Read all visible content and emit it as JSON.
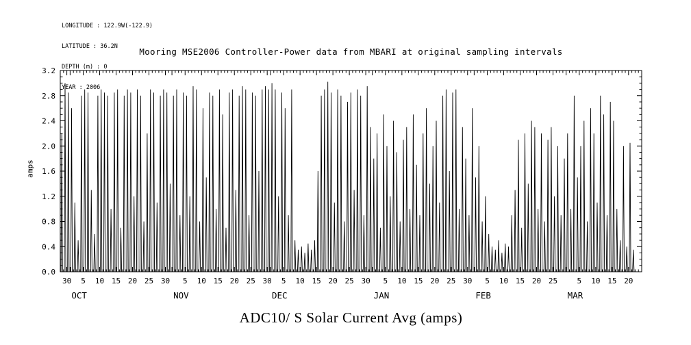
{
  "metadata": {
    "lines": [
      "LONGITUDE : 122.9W(-122.9)",
      "LATITUDE : 36.2N",
      "DEPTH (m) : 0",
      "YEAR : 2006"
    ]
  },
  "colors": {
    "axis": "#000000",
    "series": "#000000",
    "background": "#ffffff"
  },
  "chart_data": {
    "type": "line",
    "title": "Mooring MSE2006 Controller-Power data from MBARI at original sampling intervals",
    "variable_label": "ADC10/ S Solar Current Avg (amps)",
    "ylabel": "amps",
    "ylim": [
      0.0,
      3.2
    ],
    "ytick_step": 0.4,
    "ytick_labels": [
      "0.0",
      "0.4",
      "0.8",
      "1.2",
      "1.6",
      "2.0",
      "2.4",
      "2.8",
      "3.2"
    ],
    "grid": false,
    "legend": false,
    "x_axis": {
      "total_days": 177,
      "tick_labels": [
        {
          "day": 2,
          "label": "30"
        },
        {
          "day": 7,
          "label": "5"
        },
        {
          "day": 12,
          "label": "10"
        },
        {
          "day": 17,
          "label": "15"
        },
        {
          "day": 22,
          "label": "20"
        },
        {
          "day": 27,
          "label": "25"
        },
        {
          "day": 32,
          "label": "30"
        },
        {
          "day": 38,
          "label": "5"
        },
        {
          "day": 43,
          "label": "10"
        },
        {
          "day": 48,
          "label": "15"
        },
        {
          "day": 53,
          "label": "20"
        },
        {
          "day": 58,
          "label": "25"
        },
        {
          "day": 63,
          "label": "30"
        },
        {
          "day": 68,
          "label": "5"
        },
        {
          "day": 73,
          "label": "10"
        },
        {
          "day": 78,
          "label": "15"
        },
        {
          "day": 83,
          "label": "20"
        },
        {
          "day": 88,
          "label": "25"
        },
        {
          "day": 93,
          "label": "30"
        },
        {
          "day": 99,
          "label": "5"
        },
        {
          "day": 104,
          "label": "10"
        },
        {
          "day": 109,
          "label": "15"
        },
        {
          "day": 114,
          "label": "20"
        },
        {
          "day": 119,
          "label": "25"
        },
        {
          "day": 124,
          "label": "30"
        },
        {
          "day": 130,
          "label": "5"
        },
        {
          "day": 135,
          "label": "10"
        },
        {
          "day": 140,
          "label": "15"
        },
        {
          "day": 145,
          "label": "20"
        },
        {
          "day": 150,
          "label": "25"
        },
        {
          "day": 158,
          "label": "5"
        },
        {
          "day": 163,
          "label": "10"
        },
        {
          "day": 168,
          "label": "15"
        },
        {
          "day": 173,
          "label": "20"
        }
      ],
      "month_labels": [
        {
          "day": 3,
          "label": "OCT"
        },
        {
          "day": 34,
          "label": "NOV"
        },
        {
          "day": 64,
          "label": "DEC"
        },
        {
          "day": 95,
          "label": "JAN"
        },
        {
          "day": 126,
          "label": "FEB"
        },
        {
          "day": 154,
          "label": "MAR"
        }
      ]
    },
    "series": [
      {
        "name": "ADC10/ S Solar Current Avg (amps)",
        "daily_peak_amps": [
          2.2,
          3.0,
          2.85,
          2.6,
          1.1,
          0.5,
          2.8,
          2.9,
          2.85,
          1.3,
          0.6,
          2.8,
          2.9,
          2.85,
          2.8,
          1.0,
          2.85,
          2.9,
          0.7,
          2.8,
          2.9,
          2.85,
          1.2,
          2.9,
          2.8,
          0.8,
          2.2,
          2.9,
          2.85,
          1.1,
          2.8,
          2.9,
          2.85,
          1.4,
          2.8,
          2.9,
          0.9,
          2.85,
          2.8,
          1.2,
          2.95,
          2.9,
          0.8,
          2.6,
          1.5,
          2.85,
          2.8,
          1.0,
          2.9,
          2.5,
          0.7,
          2.85,
          2.9,
          1.3,
          2.8,
          2.95,
          2.9,
          0.9,
          2.85,
          2.8,
          1.6,
          2.9,
          2.95,
          2.9,
          3.0,
          2.9,
          1.2,
          2.85,
          2.6,
          0.9,
          2.9,
          0.5,
          0.35,
          0.4,
          0.3,
          0.45,
          0.35,
          0.5,
          1.6,
          2.8,
          2.9,
          3.02,
          2.85,
          1.1,
          2.9,
          2.8,
          0.8,
          2.7,
          2.85,
          1.3,
          2.9,
          2.8,
          0.9,
          2.95,
          2.3,
          1.8,
          2.2,
          0.7,
          2.5,
          2.0,
          1.2,
          2.4,
          1.9,
          0.8,
          2.1,
          2.3,
          1.0,
          2.5,
          1.7,
          0.9,
          2.2,
          2.6,
          1.4,
          2.0,
          2.4,
          1.1,
          2.8,
          2.9,
          1.6,
          2.85,
          2.9,
          1.0,
          2.3,
          1.8,
          0.9,
          2.6,
          1.5,
          2.0,
          0.8,
          1.2,
          0.6,
          0.4,
          0.35,
          0.5,
          0.3,
          0.45,
          0.4,
          0.9,
          1.3,
          2.1,
          0.7,
          2.2,
          1.4,
          2.4,
          2.3,
          1.0,
          2.2,
          0.8,
          2.1,
          2.3,
          1.2,
          2.0,
          0.9,
          1.8,
          2.2,
          1.0,
          2.8,
          1.5,
          2.0,
          2.4,
          0.8,
          2.6,
          2.2,
          1.1,
          2.8,
          2.5,
          0.9,
          2.7,
          2.4,
          1.0,
          0.5,
          2.0,
          0.4,
          2.05,
          0.35
        ]
      }
    ]
  }
}
